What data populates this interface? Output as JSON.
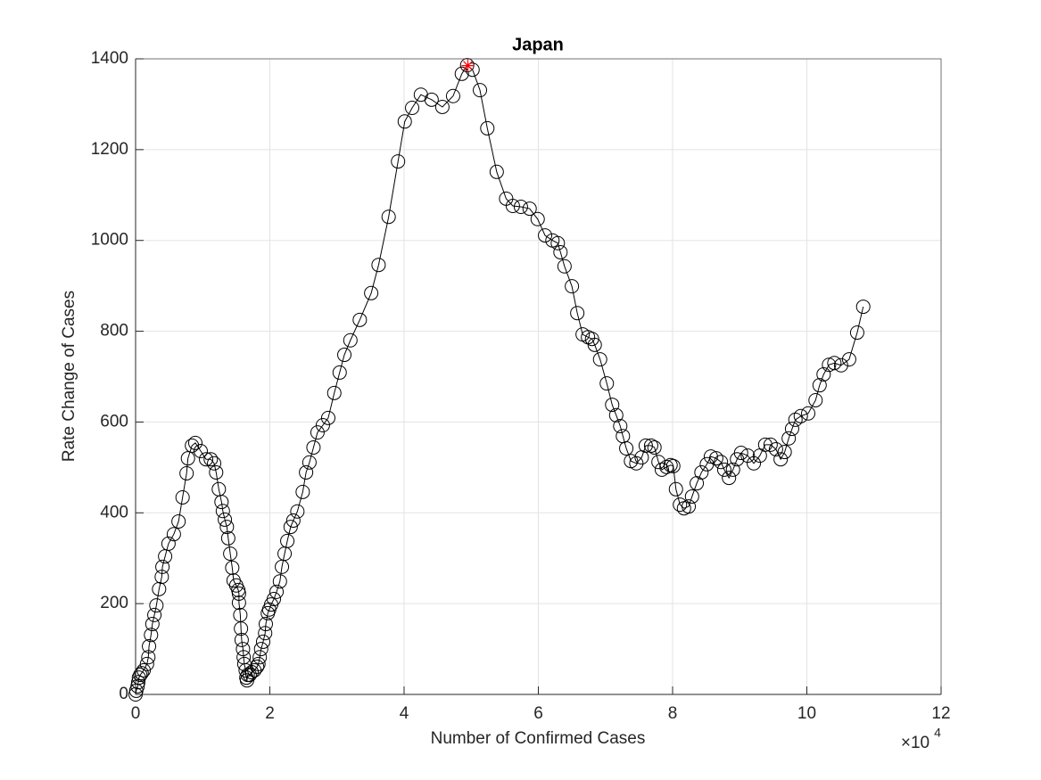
{
  "chart_data": {
    "type": "line",
    "title": "Japan",
    "x_label": "Number of Confirmed Cases",
    "y_label": "Rate Change of Cases",
    "x_multiplier": "×10",
    "x_multiplier_exponent": "4",
    "xlim": [
      0,
      12
    ],
    "xticks": [
      0,
      2,
      4,
      6,
      8,
      10,
      12
    ],
    "ylim": [
      0,
      1400
    ],
    "yticks": [
      0,
      200,
      400,
      600,
      800,
      1000,
      1200,
      1400
    ],
    "grid": true,
    "color": "#000000",
    "marker": "o",
    "x": [
      0,
      0.01,
      0.03,
      0.04,
      0.05,
      0.07,
      0.09,
      0.12,
      0.17,
      0.19,
      0.2,
      0.23,
      0.25,
      0.28,
      0.31,
      0.35,
      0.39,
      0.4,
      0.44,
      0.49,
      0.57,
      0.64,
      0.7,
      0.76,
      0.78,
      0.84,
      0.89,
      0.97,
      1.05,
      1.12,
      1.17,
      1.2,
      1.24,
      1.28,
      1.3,
      1.33,
      1.36,
      1.38,
      1.41,
      1.44,
      1.46,
      1.5,
      1.53,
      1.54,
      1.54,
      1.56,
      1.57,
      1.58,
      1.6,
      1.61,
      1.62,
      1.64,
      1.65,
      1.66,
      1.67,
      1.7,
      1.73,
      1.77,
      1.81,
      1.83,
      1.85,
      1.87,
      1.9,
      1.93,
      1.94,
      1.97,
      1.99,
      2.02,
      2.06,
      2.1,
      2.15,
      2.18,
      2.22,
      2.26,
      2.31,
      2.35,
      2.41,
      2.49,
      2.54,
      2.59,
      2.65,
      2.71,
      2.79,
      2.87,
      2.96,
      3.04,
      3.11,
      3.2,
      3.34,
      3.51,
      3.62,
      3.77,
      3.91,
      4.01,
      4.12,
      4.25,
      4.41,
      4.57,
      4.73,
      4.86,
      4.94,
      5.02,
      5.13,
      5.24,
      5.38,
      5.52,
      5.62,
      5.74,
      5.87,
      5.99,
      6.1,
      6.21,
      6.29,
      6.33,
      6.39,
      6.5,
      6.58,
      6.66,
      6.74,
      6.8,
      6.84,
      6.92,
      7.02,
      7.1,
      7.16,
      7.22,
      7.26,
      7.31,
      7.38,
      7.46,
      7.54,
      7.6,
      7.68,
      7.73,
      7.79,
      7.84,
      7.91,
      7.97,
      8.01,
      8.05,
      8.11,
      8.17,
      8.24,
      8.29,
      8.36,
      8.43,
      8.51,
      8.57,
      8.65,
      8.72,
      8.77,
      8.84,
      8.9,
      8.96,
      9.02,
      9.12,
      9.21,
      9.3,
      9.38,
      9.46,
      9.54,
      9.61,
      9.67,
      9.73,
      9.78,
      9.83,
      9.91,
      10.02,
      10.13,
      10.19,
      10.25,
      10.33,
      10.41,
      10.51,
      10.63,
      10.75,
      10.84
    ],
    "values": [
      0,
      8,
      18,
      27,
      37,
      43,
      47,
      53,
      67,
      82,
      106,
      131,
      155,
      175,
      196,
      232,
      259,
      281,
      304,
      332,
      353,
      381,
      434,
      487,
      520,
      548,
      554,
      536,
      518,
      518,
      509,
      489,
      452,
      424,
      404,
      385,
      369,
      344,
      310,
      279,
      251,
      240,
      230,
      222,
      202,
      175,
      145,
      120,
      100,
      82,
      67,
      53,
      37,
      31,
      43,
      43,
      49,
      53,
      61,
      67,
      82,
      100,
      116,
      135,
      155,
      179,
      187,
      198,
      210,
      226,
      249,
      281,
      310,
      338,
      369,
      383,
      403,
      446,
      489,
      511,
      544,
      577,
      593,
      609,
      664,
      709,
      748,
      780,
      825,
      884,
      946,
      1052,
      1174,
      1262,
      1292,
      1321,
      1310,
      1294,
      1318,
      1367,
      1386,
      1376,
      1331,
      1247,
      1151,
      1092,
      1076,
      1074,
      1070,
      1047,
      1011,
      1000,
      994,
      974,
      943,
      899,
      840,
      793,
      787,
      783,
      770,
      738,
      685,
      638,
      615,
      591,
      569,
      542,
      514,
      509,
      522,
      548,
      548,
      544,
      512,
      495,
      501,
      505,
      503,
      452,
      418,
      410,
      414,
      436,
      465,
      489,
      507,
      524,
      520,
      512,
      495,
      477,
      495,
      518,
      532,
      526,
      509,
      526,
      550,
      550,
      540,
      518,
      534,
      564,
      585,
      605,
      613,
      619,
      648,
      681,
      705,
      726,
      730,
      725,
      738,
      797,
      854
    ],
    "peak": {
      "x": 4.95,
      "y": 1385,
      "color": "#ff0000",
      "marker": "*"
    }
  }
}
